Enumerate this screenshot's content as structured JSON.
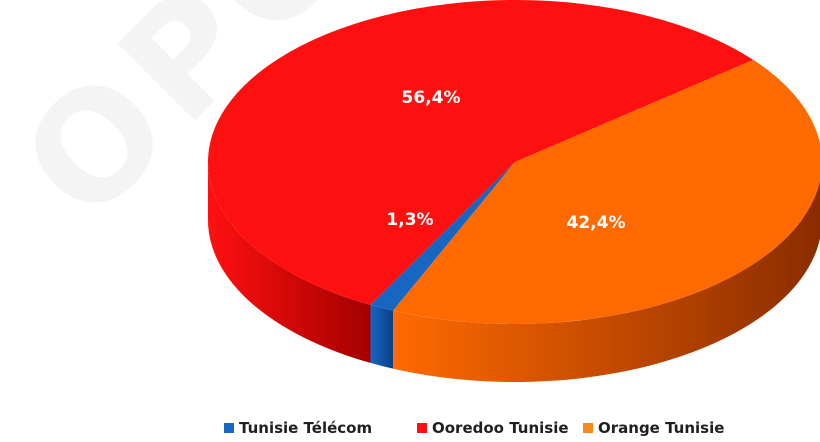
{
  "chart_data": {
    "type": "pie",
    "style": "3d",
    "title": "",
    "slices": [
      {
        "label": "Tunisie Télécom",
        "value": 1.3,
        "display": "1,3%",
        "color": "#1766c2",
        "side_color": "#0b3f86"
      },
      {
        "label": "Ooredoo Tunisie",
        "value": 56.4,
        "display": "56,4%",
        "color": "#ff1010",
        "side_color": "#a40000"
      },
      {
        "label": "Orange Tunisie",
        "value": 42.4,
        "display": "42,4%",
        "color": "#ff6a00",
        "side_color": "#8a2c00"
      }
    ],
    "legend": {
      "position": "bottom",
      "items": [
        {
          "label": "Tunisie Télécom",
          "color": "#1766c2"
        },
        {
          "label": "Ooredoo Tunisie",
          "color": "#ff1010"
        },
        {
          "label": "Orange Tunisie",
          "color": "#f28b1c"
        }
      ]
    }
  },
  "watermark": "OPO"
}
